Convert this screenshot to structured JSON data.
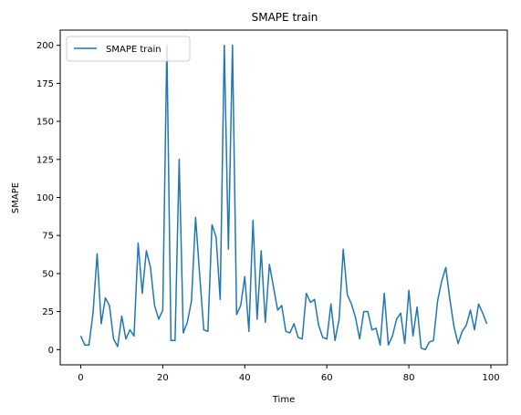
{
  "chart_data": {
    "type": "line",
    "title": "SMAPE train",
    "xlabel": "Time",
    "ylabel": "SMAPE",
    "xlim": [
      -5,
      104
    ],
    "ylim": [
      -10,
      210
    ],
    "xticks": [
      0,
      20,
      40,
      60,
      80,
      100
    ],
    "yticks": [
      0,
      25,
      50,
      75,
      100,
      125,
      150,
      175,
      200
    ],
    "grid": false,
    "legend_position": "top-left",
    "series": [
      {
        "name": "SMAPE train",
        "color": "#1f77b4",
        "x": [
          0,
          1,
          2,
          3,
          4,
          5,
          6,
          7,
          8,
          9,
          10,
          11,
          12,
          13,
          14,
          15,
          16,
          17,
          18,
          19,
          20,
          21,
          22,
          23,
          24,
          25,
          26,
          27,
          28,
          29,
          30,
          31,
          32,
          33,
          34,
          35,
          36,
          37,
          38,
          39,
          40,
          41,
          42,
          43,
          44,
          45,
          46,
          47,
          48,
          49,
          50,
          51,
          52,
          53,
          54,
          55,
          56,
          57,
          58,
          59,
          60,
          61,
          62,
          63,
          64,
          65,
          66,
          67,
          68,
          69,
          70,
          71,
          72,
          73,
          74,
          75,
          76,
          77,
          78,
          79,
          80,
          81,
          82,
          83,
          84,
          85,
          86,
          87,
          88,
          89,
          90,
          91,
          92,
          93,
          94,
          95,
          96,
          97,
          98,
          99
        ],
        "y": [
          9,
          3,
          3,
          24,
          63,
          17,
          34,
          29,
          7,
          2,
          22,
          7,
          13,
          9,
          70,
          37,
          65,
          54,
          29,
          20,
          26,
          200,
          6,
          6,
          125,
          11,
          18,
          32,
          87,
          49,
          13,
          12,
          82,
          74,
          33,
          200,
          66,
          200,
          23,
          29,
          48,
          12,
          85,
          20,
          65,
          18,
          56,
          41,
          26,
          29,
          12,
          11,
          17,
          8,
          7,
          37,
          31,
          33,
          16,
          8,
          7,
          30,
          6,
          20,
          66,
          36,
          30,
          21,
          7,
          25,
          25,
          13,
          14,
          3,
          37,
          3,
          9,
          20,
          24,
          4,
          39,
          9,
          28,
          1,
          0,
          5,
          6,
          32,
          45,
          54,
          33,
          15,
          4,
          12,
          16,
          26,
          13,
          30,
          24,
          17
        ]
      }
    ]
  }
}
